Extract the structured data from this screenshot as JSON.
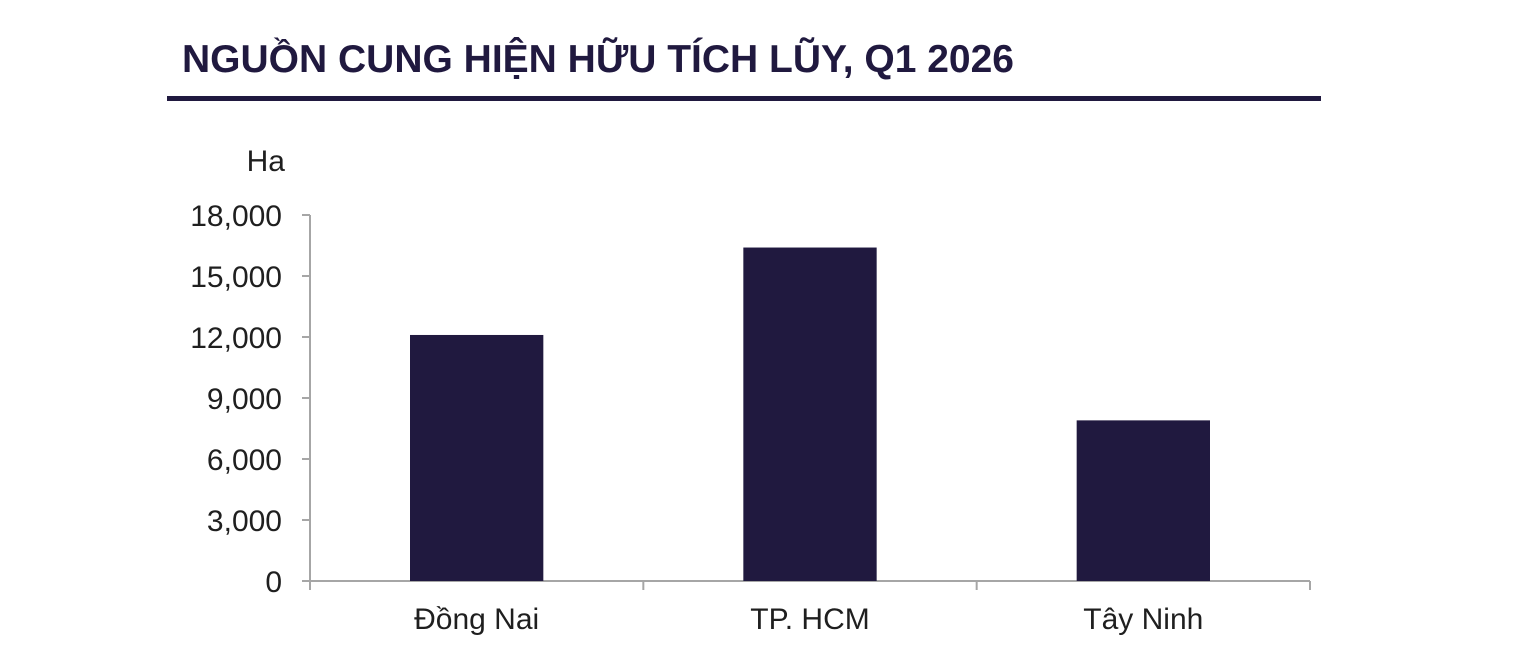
{
  "title": "NGUỒN CUNG HIỆN HỮU TÍCH LŨY, Q1 2026",
  "chart_data": {
    "type": "bar",
    "title": "NGUỒN CUNG HIỆN HỮU TÍCH LŨY, Q1 2026",
    "ylabel": "Ha",
    "xlabel": "",
    "categories": [
      "Đồng Nai",
      "TP. HCM",
      "Tây Ninh"
    ],
    "values": [
      12100,
      16400,
      7900
    ],
    "ylim": [
      0,
      18000
    ],
    "yticks": [
      0,
      3000,
      6000,
      9000,
      12000,
      15000,
      18000
    ],
    "ytick_labels": [
      "0",
      "3,000",
      "6,000",
      "9,000",
      "12,000",
      "15,000",
      "18,000"
    ],
    "bar_color": "#20193f",
    "axis_color": "#a6a6a6",
    "grid": false,
    "legend": "none"
  }
}
